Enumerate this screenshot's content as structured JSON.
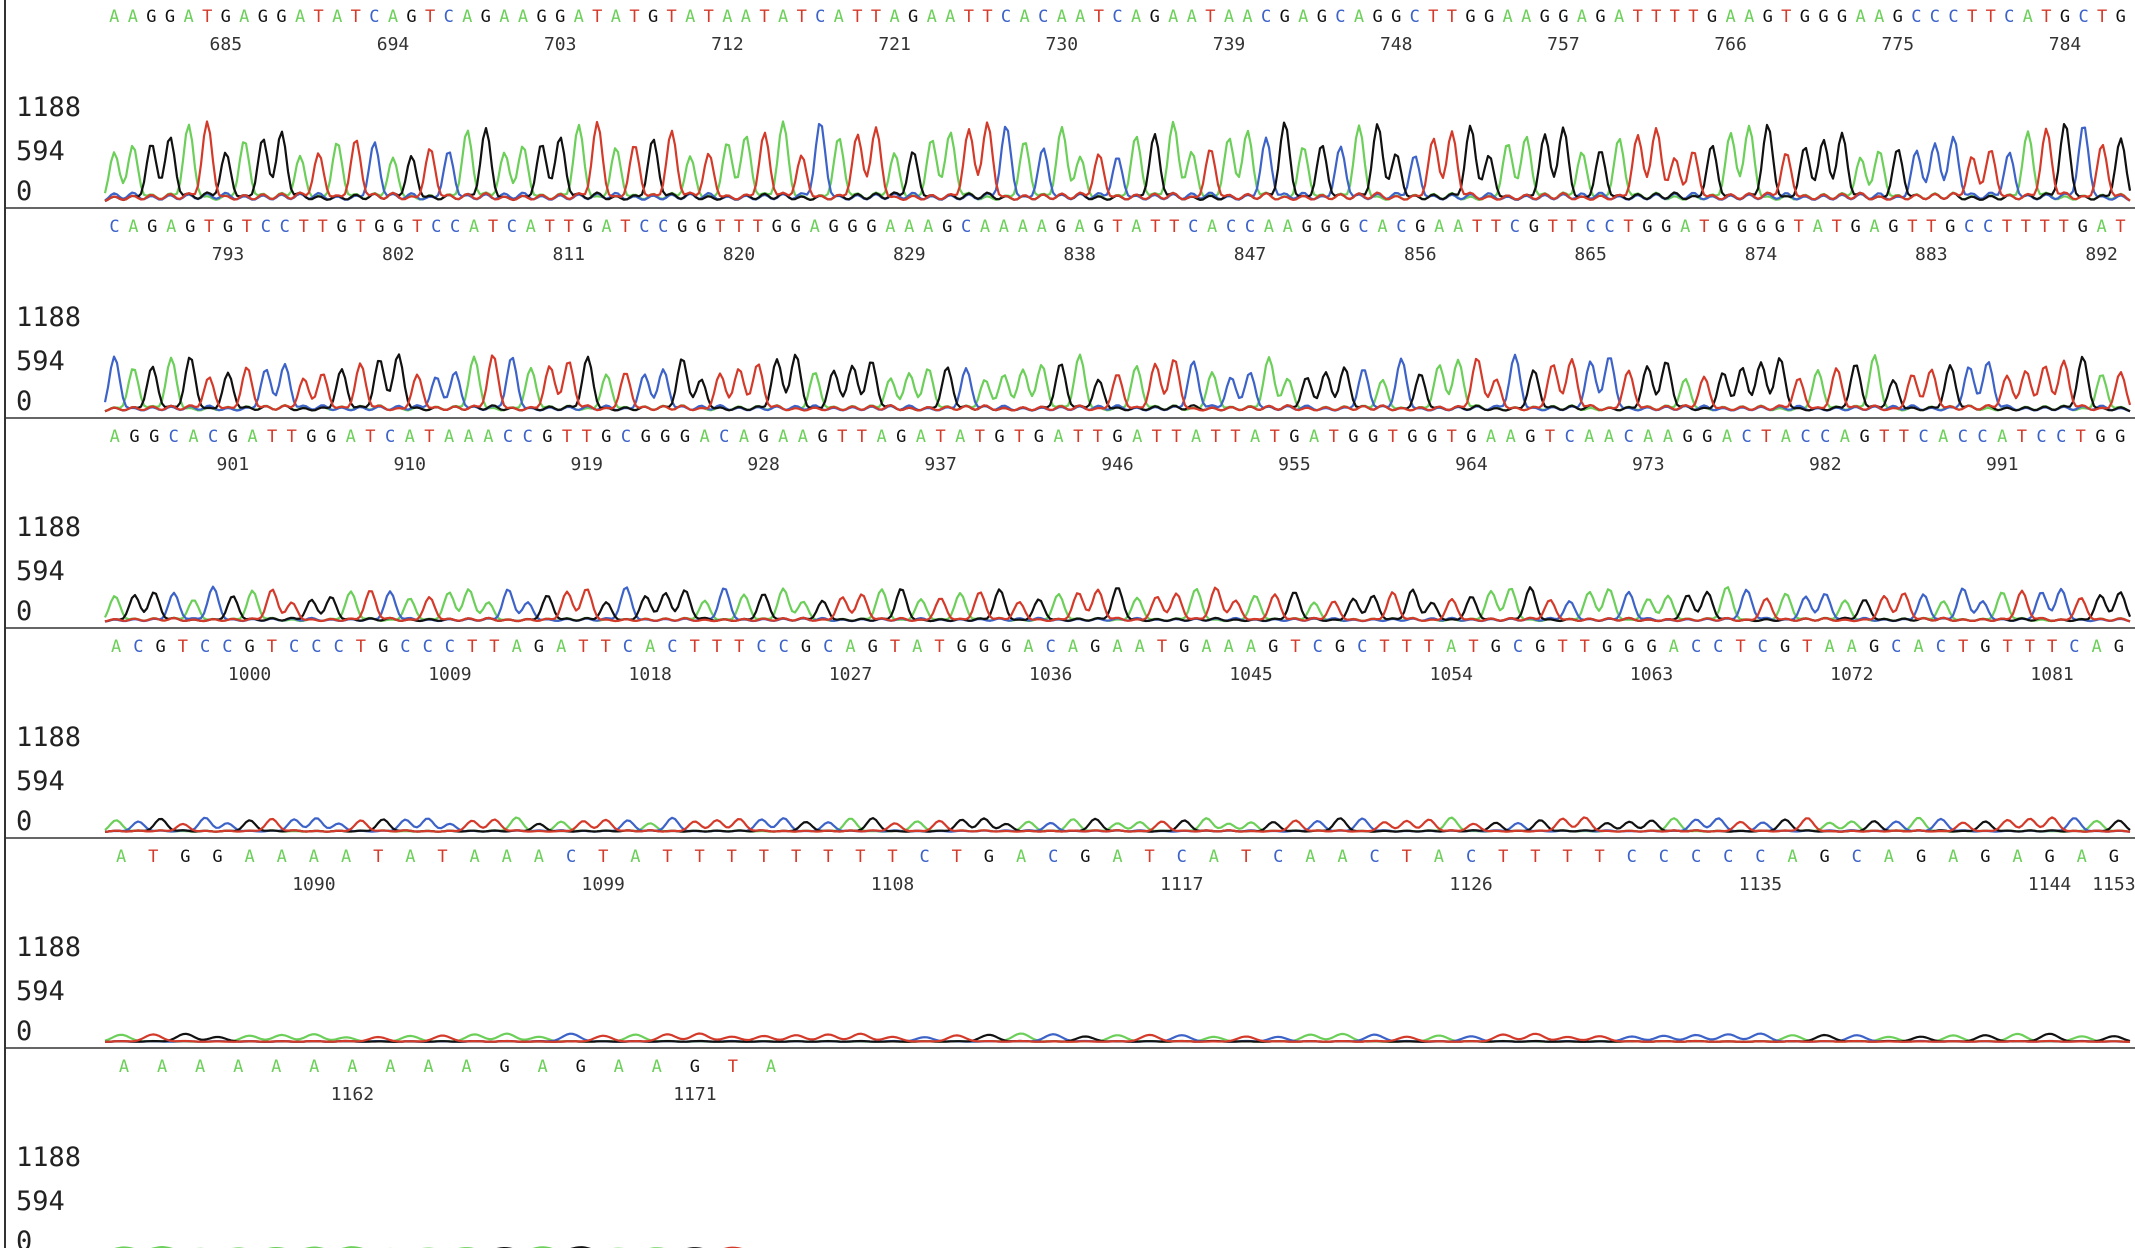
{
  "colors": {
    "A": "#6ccf5a",
    "C": "#3d63c8",
    "G": "#111111",
    "T": "#d43a2a",
    "frame": "#333333"
  },
  "chart_data": {
    "type": "line",
    "title": "",
    "xlabel": "",
    "ylabel": "",
    "ylim": [
      0,
      1188
    ],
    "y_ticks": [
      "1188",
      "594",
      "0"
    ],
    "panels": [
      {
        "sequence": "AAGGATGAGGATATCAGTCAGAAGGATATGTATAATATCATTAGAATTCACAATCAGAATAACGAGCAGGCTTGGAAGGAGATTTTGAAGTGGGAAGCCCTTCATGCTG",
        "position_labels": [
          "685",
          "694",
          "703",
          "712",
          "721",
          "730",
          "739",
          "748",
          "757",
          "766",
          "775",
          "784"
        ],
        "signal_strength": 0.85
      },
      {
        "sequence": "CAGAGTGTCCTTGTGGTCCATCATTGATCCGGTTTGGAGGGAAAGCAAAAGAGTATTCACCAAGGGCACGAATTCGTTCCTGGATGGGGTATGAGTTGCCTTTTGAT",
        "position_labels": [
          "793",
          "802",
          "811",
          "820",
          "829",
          "838",
          "847",
          "856",
          "865",
          "874",
          "883",
          "892"
        ],
        "signal_strength": 0.6
      },
      {
        "sequence": "AGGCACGATTGGATCATAAACCGTTGCGGGACAGAAGTTAGATATGTGATTGATTATTATGATGGTGGTGAAGTCAACAAGGACTACCAGTTCACCATCCTGG",
        "position_labels": [
          "901",
          "910",
          "919",
          "928",
          "937",
          "946",
          "955",
          "964",
          "973",
          "982",
          "991"
        ],
        "signal_strength": 0.35
      },
      {
        "sequence": "ACGTCCGTCCCTGCCCTTAGATTCACTTTCCGCAGTATGGGACAGAATGAAAGTCGCTTTATGCGTTGGGACCTCGTAAGCACTGTTTCAG",
        "position_labels": [
          "1000",
          "1009",
          "1018",
          "1027",
          "1036",
          "1045",
          "1054",
          "1063",
          "1072",
          "1081"
        ],
        "signal_strength": 0.12
      },
      {
        "sequence": "ATGGAAAATATAAACTATTTTTTTTCTGACGATCATCAACTACTTTTCCCCCAGCAGAGAGAG",
        "position_labels": [
          "1090",
          "1099",
          "1108",
          "1117",
          "1126",
          "1135",
          "1144",
          "1153"
        ],
        "signal_strength": 0.05
      },
      {
        "sequence": "AAAAAAAAAAGAGAAGTA",
        "position_labels": [
          "1162",
          "1171"
        ],
        "signal_strength": 0.01
      }
    ]
  }
}
